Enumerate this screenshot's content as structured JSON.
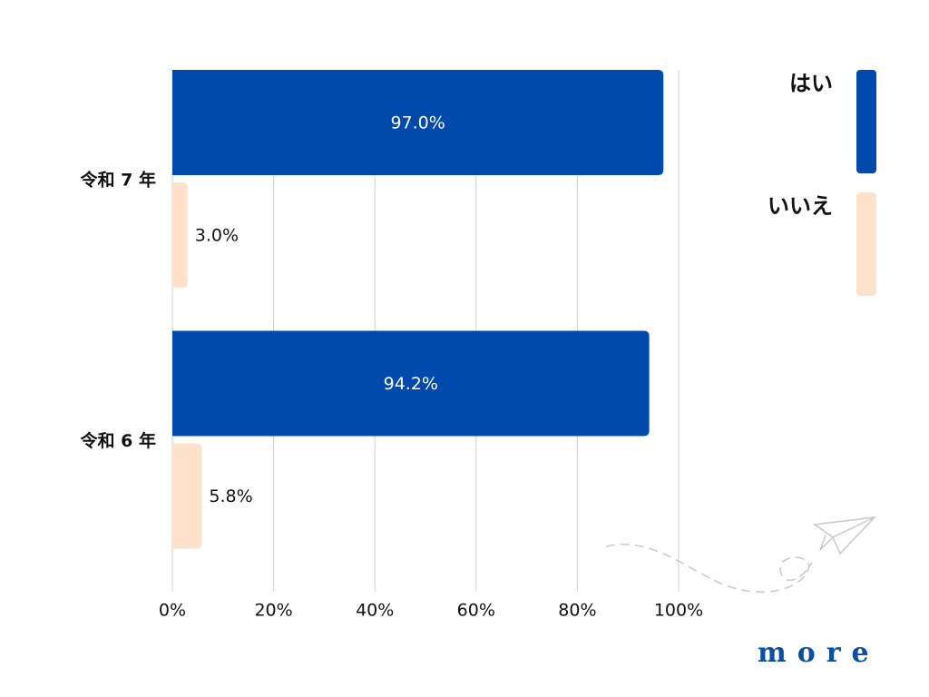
{
  "chart_data": {
    "type": "bar",
    "orientation": "horizontal",
    "categories": [
      "令和 7 年",
      "令和 6 年"
    ],
    "series": [
      {
        "name": "はい",
        "color": "#004aad",
        "values": [
          97.0,
          94.2
        ],
        "value_labels": [
          "97.0%",
          "94.2%"
        ]
      },
      {
        "name": "いいえ",
        "color": "#ffe1cc",
        "values": [
          3.0,
          5.8
        ],
        "value_labels": [
          "3.0%",
          "5.8%"
        ]
      }
    ],
    "xlim": [
      0,
      100
    ],
    "xticks": [
      {
        "value": 0,
        "label": "0%"
      },
      {
        "value": 20,
        "label": "20%"
      },
      {
        "value": 40,
        "label": "40%"
      },
      {
        "value": 60,
        "label": "60%"
      },
      {
        "value": 80,
        "label": "80%"
      },
      {
        "value": 100,
        "label": "100%"
      }
    ],
    "grid": true,
    "legend": "right",
    "brand": "more"
  }
}
